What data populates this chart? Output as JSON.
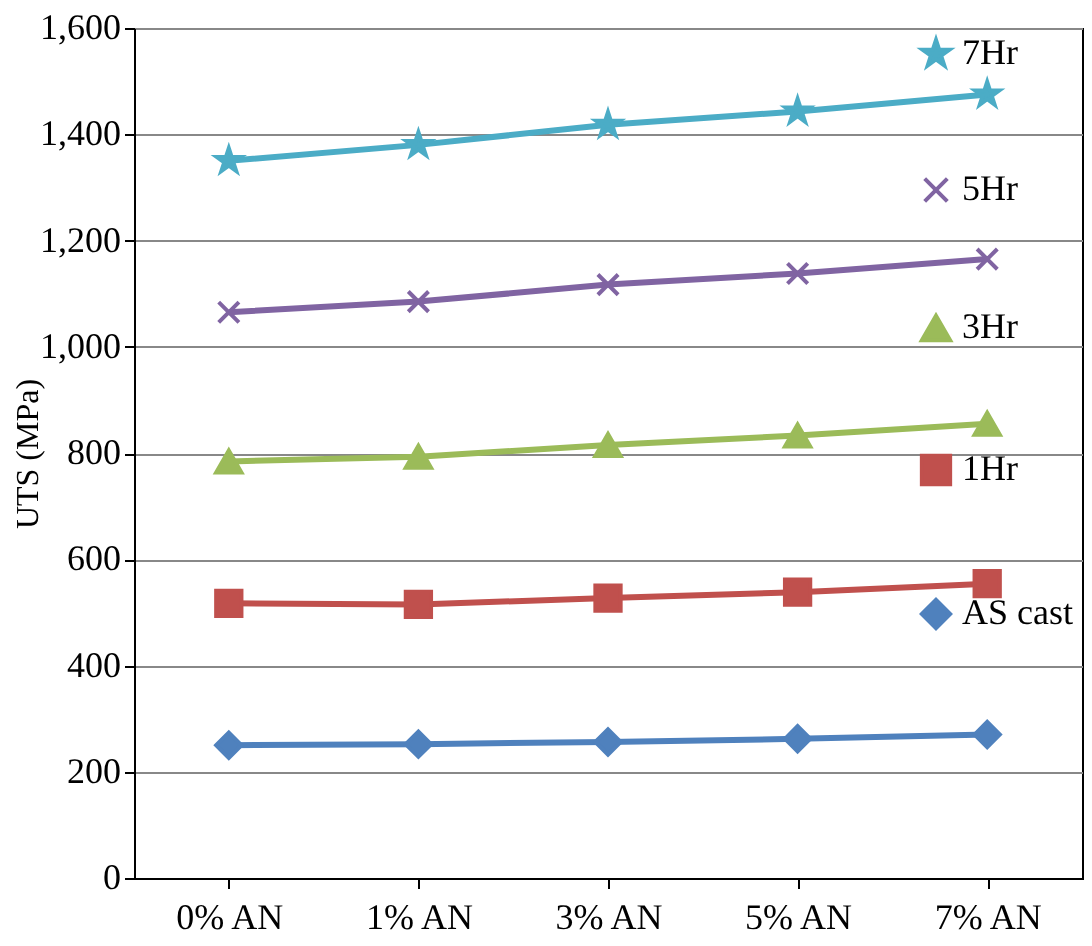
{
  "chart_data": {
    "type": "line",
    "ylabel": "UTS (MPa)",
    "categories": [
      "0% AN",
      "1% AN",
      "3% AN",
      "5% AN",
      "7% AN"
    ],
    "series": [
      {
        "name": "7Hr",
        "color": "#4bacc6",
        "marker": "star",
        "values": [
          1350,
          1380,
          1418,
          1443,
          1475
        ]
      },
      {
        "name": "5Hr",
        "color": "#8064a2",
        "marker": "cross",
        "values": [
          1065,
          1085,
          1117,
          1138,
          1165
        ]
      },
      {
        "name": "3Hr",
        "color": "#9bbb59",
        "marker": "triangle",
        "values": [
          784,
          793,
          815,
          833,
          855
        ]
      },
      {
        "name": "1Hr",
        "color": "#c0504d",
        "marker": "square",
        "values": [
          517,
          515,
          527,
          538,
          554
        ]
      },
      {
        "name": "AS cast",
        "color": "#4f81bd",
        "marker": "diamond",
        "values": [
          250,
          252,
          256,
          262,
          270
        ]
      }
    ],
    "ylim": [
      0,
      1600
    ],
    "yticks": [
      0,
      200,
      400,
      600,
      800,
      {
        "value": 1000,
        "label": "1,000"
      },
      {
        "value": 1200,
        "label": "1,200"
      },
      {
        "value": 1400,
        "label": "1,400"
      },
      {
        "value": 1600,
        "label": "1,600"
      }
    ],
    "grid": "y",
    "legend": "top right"
  }
}
